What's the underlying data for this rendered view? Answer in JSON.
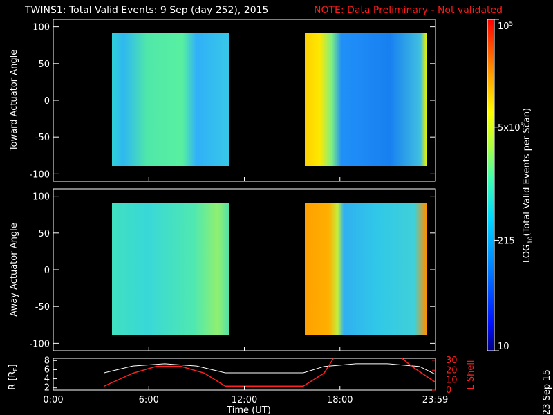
{
  "title": {
    "main": "TWINS1: Total Valid Events:  9 Sep (day 252), 2015",
    "note": "NOTE: Data Preliminary - Not validated",
    "note_color": "#ff1a1a"
  },
  "panels": [
    {
      "ylabel": "Toward Actuator Angle",
      "ylim": [
        -110,
        110
      ],
      "yticks": [
        100,
        50,
        0,
        -50,
        -100
      ]
    },
    {
      "ylabel": "Away Actuator Angle",
      "ylim": [
        -110,
        110
      ],
      "yticks": [
        100,
        50,
        0,
        -50,
        -100
      ]
    }
  ],
  "colorbar": {
    "label_prefix": "LOG",
    "label_sub": "10",
    "label_rest": "(Total Valid Events per Scan)",
    "scale": "log",
    "range": [
      10,
      100000
    ],
    "ticks": [
      {
        "value": 100000,
        "text": "10",
        "sup": "5"
      },
      {
        "value": 5000,
        "text": "5x10",
        "sup": "3"
      },
      {
        "value": 215,
        "text": "215"
      },
      {
        "value": 10,
        "text": "10"
      }
    ]
  },
  "orbit": {
    "left_axis_label": "R [R",
    "left_axis_sub": "E",
    "left_axis_close": "]",
    "left_ticks": [
      8,
      6,
      4,
      2
    ],
    "left_range": [
      1.5,
      8.5
    ],
    "right_axis_label": "L Shell",
    "right_ticks": [
      30,
      20,
      10,
      0
    ],
    "right_range": [
      0,
      32
    ],
    "r_color": "#ffffff",
    "l_color": "#ff2020"
  },
  "xaxis": {
    "label": "Time (UT)",
    "ticks": [
      "0:00",
      "6:00",
      "12:00",
      "18:00",
      "23:59"
    ],
    "tick_hours": [
      0,
      6,
      12,
      18,
      23.98
    ]
  },
  "date_stamp": "23 Sep 15",
  "chart_data": {
    "type": "heatmap",
    "title": "TWINS1: Total Valid Events:  9 Sep (day 252), 2015",
    "x_unit": "hours UT",
    "xlim": [
      0,
      24
    ],
    "data_intervals_hours": [
      [
        3.2,
        10.8
      ],
      [
        15.7,
        23.7
      ]
    ],
    "y_range_deg": [
      -88,
      90
    ],
    "colorscale": "log10 events per scan, 10 to 1e5 (blue-cyan-green-yellow-red)",
    "approx_levels": [
      {
        "panel": "Toward Actuator Angle",
        "interval": "3.2-10.8 h",
        "typical": "cyan-green (~300-1000)",
        "notes": "greener 5-8 h, bluer 8.5-10 h"
      },
      {
        "panel": "Toward Actuator Angle",
        "interval": "15.7-23.7 h",
        "typical": "yellow-orange 15.7-17.5 h (~3000-10000), blue 17.5-23 h (~100-300)"
      },
      {
        "panel": "Away Actuator Angle",
        "interval": "3.2-10.8 h",
        "typical": "cyan (~300-700)",
        "notes": "green-yellow near 8-10 h at 0-40 deg"
      },
      {
        "panel": "Away Actuator Angle",
        "interval": "15.7-23.7 h",
        "typical": "orange 15.7-17.5 h (~5000-20000), cyan-blue 17.5-23.5 h"
      }
    ],
    "orbit_R_RE": {
      "x": [
        3.2,
        5,
        7,
        9,
        10.8,
        15.7,
        17,
        19,
        21,
        23,
        23.98
      ],
      "y": [
        5.3,
        6.8,
        7.3,
        6.8,
        5.3,
        5.3,
        6.7,
        7.3,
        7.3,
        6.7,
        5.0
      ]
    },
    "orbit_L_shell": {
      "x": [
        3.2,
        5,
        6.5,
        8,
        9.5,
        10.8,
        15.7,
        17,
        17.6,
        21.9,
        22.5,
        23.98
      ],
      "y": [
        4,
        17,
        24,
        24,
        17,
        4,
        4,
        17,
        32,
        32,
        24,
        8
      ]
    }
  }
}
